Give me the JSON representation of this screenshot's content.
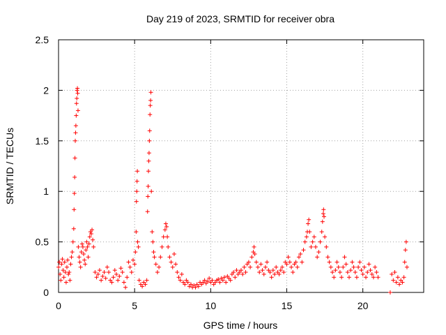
{
  "chart_data": {
    "type": "scatter",
    "title": "Day 219 of 2023, SRMTID for receiver obra",
    "xlabel": "GPS time / hours",
    "ylabel": "SRMTID / TECUs",
    "xlim": [
      0,
      24
    ],
    "ylim": [
      0,
      2.5
    ],
    "xticks": [
      0,
      5,
      10,
      15,
      20
    ],
    "xtick_labels": [
      "0",
      "5",
      "10",
      "15",
      "20"
    ],
    "yticks": [
      0,
      0.5,
      1,
      1.5,
      2,
      2.5
    ],
    "ytick_labels": [
      "0",
      "0.5",
      "1",
      "1.5",
      "2",
      "2.5"
    ],
    "grid": true,
    "marker": "+",
    "color": "#ff0000",
    "series": [
      {
        "name": "SRMTID",
        "points": [
          [
            0.0,
            0.25
          ],
          [
            0.05,
            0.3
          ],
          [
            0.1,
            0.18
          ],
          [
            0.15,
            0.12
          ],
          [
            0.2,
            0.28
          ],
          [
            0.25,
            0.33
          ],
          [
            0.3,
            0.22
          ],
          [
            0.35,
            0.15
          ],
          [
            0.4,
            0.3
          ],
          [
            0.45,
            0.2
          ],
          [
            0.5,
            0.1
          ],
          [
            0.55,
            0.25
          ],
          [
            0.6,
            0.32
          ],
          [
            0.65,
            0.18
          ],
          [
            0.7,
            0.2
          ],
          [
            0.75,
            0.12
          ],
          [
            0.8,
            0.28
          ],
          [
            0.85,
            0.35
          ],
          [
            0.9,
            0.4
          ],
          [
            0.95,
            0.5
          ],
          [
            1.0,
            0.63
          ],
          [
            1.02,
            0.82
          ],
          [
            1.04,
            0.98
          ],
          [
            1.06,
            1.14
          ],
          [
            1.08,
            1.33
          ],
          [
            1.1,
            1.5
          ],
          [
            1.12,
            1.58
          ],
          [
            1.14,
            1.65
          ],
          [
            1.16,
            1.75
          ],
          [
            1.18,
            1.87
          ],
          [
            1.2,
            1.92
          ],
          [
            1.22,
            2.0
          ],
          [
            1.24,
            2.02
          ],
          [
            1.26,
            1.97
          ],
          [
            1.28,
            1.8
          ],
          [
            1.3,
            0.45
          ],
          [
            1.35,
            0.35
          ],
          [
            1.4,
            0.3
          ],
          [
            1.45,
            0.25
          ],
          [
            1.5,
            0.4
          ],
          [
            1.55,
            0.48
          ],
          [
            1.6,
            0.45
          ],
          [
            1.65,
            0.38
          ],
          [
            1.7,
            0.32
          ],
          [
            1.75,
            0.28
          ],
          [
            1.8,
            0.42
          ],
          [
            1.85,
            0.5
          ],
          [
            1.9,
            0.45
          ],
          [
            1.95,
            0.35
          ],
          [
            2.0,
            0.48
          ],
          [
            2.05,
            0.55
          ],
          [
            2.1,
            0.6
          ],
          [
            2.15,
            0.58
          ],
          [
            2.2,
            0.62
          ],
          [
            2.25,
            0.52
          ],
          [
            2.3,
            0.45
          ],
          [
            2.4,
            0.2
          ],
          [
            2.5,
            0.15
          ],
          [
            2.6,
            0.18
          ],
          [
            2.7,
            0.22
          ],
          [
            2.8,
            0.12
          ],
          [
            2.9,
            0.16
          ],
          [
            3.0,
            0.2
          ],
          [
            3.1,
            0.14
          ],
          [
            3.2,
            0.25
          ],
          [
            3.3,
            0.2
          ],
          [
            3.4,
            0.12
          ],
          [
            3.5,
            0.1
          ],
          [
            3.6,
            0.15
          ],
          [
            3.7,
            0.22
          ],
          [
            3.8,
            0.18
          ],
          [
            3.9,
            0.12
          ],
          [
            4.0,
            0.16
          ],
          [
            4.1,
            0.24
          ],
          [
            4.2,
            0.2
          ],
          [
            4.3,
            0.1
          ],
          [
            4.4,
            0.05
          ],
          [
            4.5,
            0.15
          ],
          [
            4.6,
            0.3
          ],
          [
            4.7,
            0.25
          ],
          [
            4.8,
            0.2
          ],
          [
            4.9,
            0.32
          ],
          [
            5.0,
            0.28
          ],
          [
            5.05,
            0.4
          ],
          [
            5.1,
            0.6
          ],
          [
            5.12,
            0.9
          ],
          [
            5.14,
            1.0
          ],
          [
            5.16,
            1.1
          ],
          [
            5.18,
            1.2
          ],
          [
            5.2,
            0.5
          ],
          [
            5.25,
            0.45
          ],
          [
            5.3,
            0.12
          ],
          [
            5.4,
            0.08
          ],
          [
            5.5,
            0.06
          ],
          [
            5.6,
            0.1
          ],
          [
            5.7,
            0.08
          ],
          [
            5.8,
            0.12
          ],
          [
            5.85,
            0.8
          ],
          [
            5.87,
            0.95
          ],
          [
            5.89,
            1.05
          ],
          [
            5.91,
            1.2
          ],
          [
            5.93,
            1.3
          ],
          [
            5.95,
            1.38
          ],
          [
            5.97,
            1.5
          ],
          [
            5.99,
            1.6
          ],
          [
            6.01,
            1.76
          ],
          [
            6.03,
            1.85
          ],
          [
            6.05,
            1.9
          ],
          [
            6.07,
            1.98
          ],
          [
            6.1,
            1.0
          ],
          [
            6.15,
            0.6
          ],
          [
            6.2,
            0.5
          ],
          [
            6.25,
            0.4
          ],
          [
            6.3,
            0.35
          ],
          [
            6.4,
            0.28
          ],
          [
            6.5,
            0.2
          ],
          [
            6.6,
            0.25
          ],
          [
            6.7,
            0.35
          ],
          [
            6.8,
            0.45
          ],
          [
            6.9,
            0.55
          ],
          [
            7.0,
            0.62
          ],
          [
            7.05,
            0.68
          ],
          [
            7.1,
            0.65
          ],
          [
            7.15,
            0.55
          ],
          [
            7.2,
            0.45
          ],
          [
            7.3,
            0.35
          ],
          [
            7.4,
            0.3
          ],
          [
            7.5,
            0.25
          ],
          [
            7.6,
            0.38
          ],
          [
            7.7,
            0.28
          ],
          [
            7.8,
            0.2
          ],
          [
            7.9,
            0.15
          ],
          [
            8.0,
            0.12
          ],
          [
            8.1,
            0.18
          ],
          [
            8.2,
            0.1
          ],
          [
            8.3,
            0.08
          ],
          [
            8.4,
            0.12
          ],
          [
            8.5,
            0.1
          ],
          [
            8.6,
            0.06
          ],
          [
            8.7,
            0.08
          ],
          [
            8.8,
            0.05
          ],
          [
            8.9,
            0.07
          ],
          [
            9.0,
            0.05
          ],
          [
            9.1,
            0.08
          ],
          [
            9.2,
            0.06
          ],
          [
            9.3,
            0.1
          ],
          [
            9.4,
            0.08
          ],
          [
            9.5,
            0.1
          ],
          [
            9.6,
            0.12
          ],
          [
            9.7,
            0.09
          ],
          [
            9.8,
            0.11
          ],
          [
            9.9,
            0.14
          ],
          [
            10.0,
            0.1
          ],
          [
            10.1,
            0.12
          ],
          [
            10.2,
            0.08
          ],
          [
            10.3,
            0.1
          ],
          [
            10.4,
            0.12
          ],
          [
            10.5,
            0.13
          ],
          [
            10.6,
            0.1
          ],
          [
            10.7,
            0.14
          ],
          [
            10.8,
            0.12
          ],
          [
            10.9,
            0.15
          ],
          [
            11.0,
            0.1
          ],
          [
            11.1,
            0.16
          ],
          [
            11.2,
            0.14
          ],
          [
            11.3,
            0.12
          ],
          [
            11.4,
            0.18
          ],
          [
            11.5,
            0.2
          ],
          [
            11.6,
            0.15
          ],
          [
            11.7,
            0.22
          ],
          [
            11.8,
            0.18
          ],
          [
            11.9,
            0.2
          ],
          [
            12.0,
            0.22
          ],
          [
            12.1,
            0.18
          ],
          [
            12.2,
            0.25
          ],
          [
            12.3,
            0.2
          ],
          [
            12.4,
            0.28
          ],
          [
            12.5,
            0.3
          ],
          [
            12.6,
            0.25
          ],
          [
            12.7,
            0.35
          ],
          [
            12.8,
            0.4
          ],
          [
            12.85,
            0.45
          ],
          [
            12.9,
            0.38
          ],
          [
            13.0,
            0.3
          ],
          [
            13.1,
            0.25
          ],
          [
            13.2,
            0.2
          ],
          [
            13.3,
            0.28
          ],
          [
            13.4,
            0.22
          ],
          [
            13.5,
            0.18
          ],
          [
            13.6,
            0.25
          ],
          [
            13.7,
            0.3
          ],
          [
            13.8,
            0.22
          ],
          [
            13.9,
            0.2
          ],
          [
            14.0,
            0.15
          ],
          [
            14.1,
            0.22
          ],
          [
            14.2,
            0.18
          ],
          [
            14.3,
            0.25
          ],
          [
            14.4,
            0.2
          ],
          [
            14.5,
            0.18
          ],
          [
            14.6,
            0.22
          ],
          [
            14.7,
            0.25
          ],
          [
            14.8,
            0.2
          ],
          [
            14.9,
            0.3
          ],
          [
            15.0,
            0.28
          ],
          [
            15.1,
            0.35
          ],
          [
            15.2,
            0.3
          ],
          [
            15.3,
            0.25
          ],
          [
            15.4,
            0.2
          ],
          [
            15.5,
            0.28
          ],
          [
            15.6,
            0.3
          ],
          [
            15.7,
            0.25
          ],
          [
            15.8,
            0.35
          ],
          [
            15.9,
            0.38
          ],
          [
            16.0,
            0.3
          ],
          [
            16.1,
            0.42
          ],
          [
            16.2,
            0.5
          ],
          [
            16.3,
            0.55
          ],
          [
            16.35,
            0.6
          ],
          [
            16.4,
            0.68
          ],
          [
            16.45,
            0.72
          ],
          [
            16.5,
            0.6
          ],
          [
            16.6,
            0.45
          ],
          [
            16.7,
            0.5
          ],
          [
            16.8,
            0.55
          ],
          [
            16.9,
            0.45
          ],
          [
            17.0,
            0.35
          ],
          [
            17.1,
            0.4
          ],
          [
            17.2,
            0.5
          ],
          [
            17.3,
            0.6
          ],
          [
            17.35,
            0.7
          ],
          [
            17.4,
            0.78
          ],
          [
            17.42,
            0.82
          ],
          [
            17.45,
            0.75
          ],
          [
            17.5,
            0.55
          ],
          [
            17.6,
            0.45
          ],
          [
            17.7,
            0.35
          ],
          [
            17.8,
            0.3
          ],
          [
            17.9,
            0.25
          ],
          [
            18.0,
            0.2
          ],
          [
            18.1,
            0.15
          ],
          [
            18.2,
            0.22
          ],
          [
            18.3,
            0.3
          ],
          [
            18.4,
            0.25
          ],
          [
            18.5,
            0.2
          ],
          [
            18.6,
            0.15
          ],
          [
            18.7,
            0.25
          ],
          [
            18.8,
            0.35
          ],
          [
            18.9,
            0.28
          ],
          [
            19.0,
            0.2
          ],
          [
            19.1,
            0.15
          ],
          [
            19.2,
            0.22
          ],
          [
            19.3,
            0.3
          ],
          [
            19.4,
            0.25
          ],
          [
            19.5,
            0.2
          ],
          [
            19.6,
            0.15
          ],
          [
            19.7,
            0.25
          ],
          [
            19.8,
            0.3
          ],
          [
            19.9,
            0.22
          ],
          [
            20.0,
            0.18
          ],
          [
            20.1,
            0.25
          ],
          [
            20.2,
            0.15
          ],
          [
            20.3,
            0.2
          ],
          [
            20.4,
            0.28
          ],
          [
            20.5,
            0.22
          ],
          [
            20.6,
            0.18
          ],
          [
            20.7,
            0.15
          ],
          [
            20.8,
            0.25
          ],
          [
            20.9,
            0.2
          ],
          [
            21.0,
            0.15
          ],
          [
            21.8,
            0.0
          ],
          [
            21.9,
            0.18
          ],
          [
            22.0,
            0.12
          ],
          [
            22.1,
            0.2
          ],
          [
            22.2,
            0.1
          ],
          [
            22.3,
            0.15
          ],
          [
            22.4,
            0.08
          ],
          [
            22.5,
            0.12
          ],
          [
            22.6,
            0.1
          ],
          [
            22.7,
            0.15
          ],
          [
            22.75,
            0.3
          ],
          [
            22.8,
            0.42
          ],
          [
            22.85,
            0.5
          ],
          [
            22.9,
            0.25
          ]
        ]
      }
    ]
  }
}
